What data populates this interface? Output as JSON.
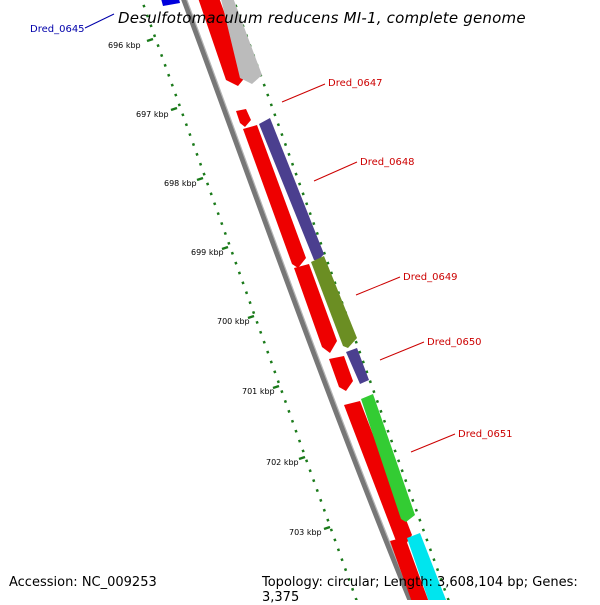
{
  "title": "Desulfotomaculum reducens MI-1, complete genome",
  "footer": {
    "accession": "Accession: NC_009253",
    "summary": "Topology: circular; Length: 3,608,104 bp; Genes: 3,375"
  },
  "colors": {
    "backbone": "#888888",
    "tick": "#1a7a1a",
    "label_red": "#cc0000",
    "label_blue": "#0000aa"
  },
  "kbp_labels": [
    "696 kbp",
    "697 kbp",
    "698 kbp",
    "699 kbp",
    "700 kbp",
    "701 kbp",
    "702 kbp",
    "703 kbp"
  ],
  "gene_labels": [
    {
      "text": "Dred_0645",
      "color": "#0000aa"
    },
    {
      "text": "Dred_0647",
      "color": "#cc0000"
    },
    {
      "text": "Dred_0648",
      "color": "#cc0000"
    },
    {
      "text": "Dred_0649",
      "color": "#cc0000"
    },
    {
      "text": "Dred_0650",
      "color": "#cc0000"
    },
    {
      "text": "Dred_0651",
      "color": "#cc0000"
    }
  ]
}
